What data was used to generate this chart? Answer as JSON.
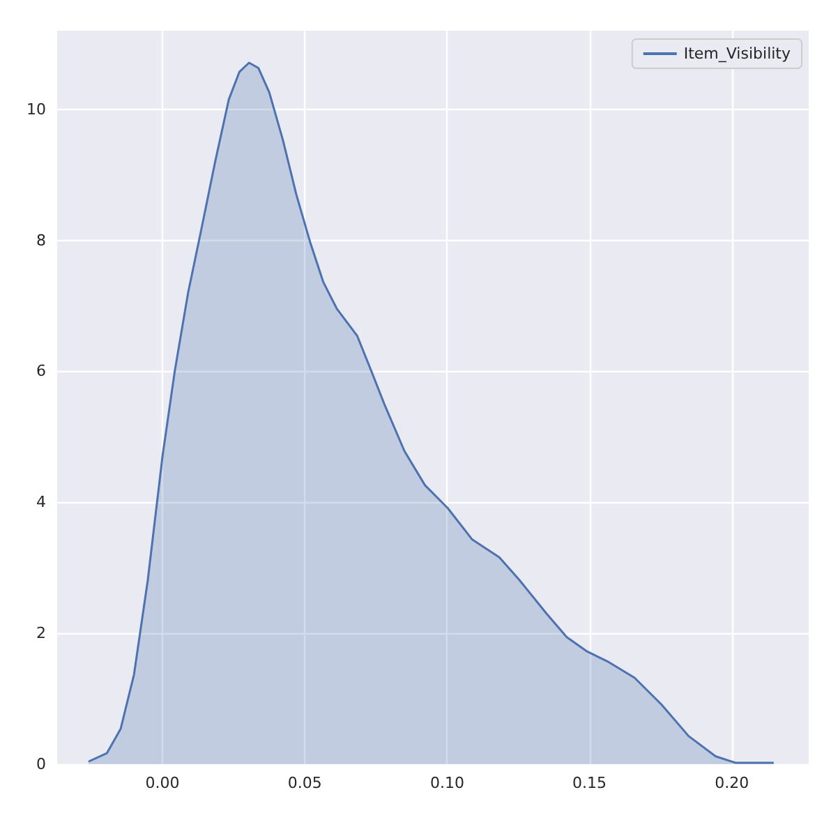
{
  "chart_data": {
    "type": "area",
    "x": [
      -0.026,
      -0.0195,
      -0.0147,
      -0.01,
      -0.0052,
      0,
      0.0043,
      0.009,
      0.0138,
      0.0185,
      0.0233,
      0.027,
      0.0304,
      0.0337,
      0.0375,
      0.0423,
      0.047,
      0.0518,
      0.0565,
      0.0613,
      0.0684,
      0.0732,
      0.0779,
      0.085,
      0.0922,
      0.1002,
      0.1088,
      0.1183,
      0.1254,
      0.1349,
      0.142,
      0.1492,
      0.1563,
      0.1658,
      0.1753,
      0.1848,
      0.1943,
      0.2014,
      0.2147
    ],
    "series": [
      {
        "name": "Item_Visibility",
        "color": "#4c72b0",
        "values": [
          0.04,
          0.17,
          0.54,
          1.37,
          2.8,
          4.7,
          6.0,
          7.2,
          8.2,
          9.2,
          10.15,
          10.57,
          10.71,
          10.63,
          10.26,
          9.53,
          8.7,
          7.98,
          7.36,
          6.95,
          6.54,
          6.02,
          5.5,
          4.78,
          4.26,
          3.91,
          3.43,
          3.16,
          2.81,
          2.3,
          1.94,
          1.72,
          1.57,
          1.32,
          0.91,
          0.43,
          0.12,
          0.02,
          0.02
        ]
      }
    ],
    "xlim": [
      -0.037,
      0.227
    ],
    "xticks": [
      {
        "value": 0,
        "label": "0.00"
      },
      {
        "value": 0.05,
        "label": "0.05"
      },
      {
        "value": 0.1,
        "label": "0.10"
      },
      {
        "value": 0.15,
        "label": "0.15"
      },
      {
        "value": 0.2,
        "label": "0.20"
      }
    ],
    "ylim": [
      0,
      11.2
    ],
    "yticks": [
      0,
      2,
      4,
      6,
      8,
      10
    ],
    "grid": true,
    "legend": "top right"
  }
}
